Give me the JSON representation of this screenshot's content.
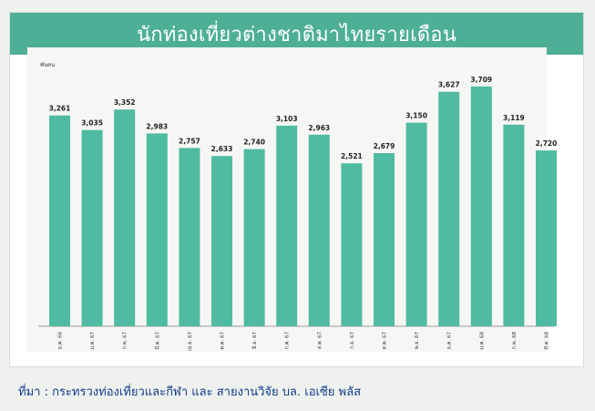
{
  "title": "นักท่องเที่ยวต่างชาติมาไทยรายเดือน",
  "unit_label": "พันคน",
  "source": "ที่มา : กระทรวงท่องเที่ยวและกีฬา และ สายงานวิจัย บล. เอเซีย พลัส",
  "colors": {
    "bar": "#4fbba2",
    "header": "#4daf96",
    "source_text": "#123a8c"
  },
  "chart_data": {
    "type": "bar",
    "title": "นักท่องเที่ยวต่างชาติมาไทยรายเดือน",
    "ylabel": "พันคน",
    "xlabel": "",
    "ylim": [
      0,
      3750
    ],
    "grid": false,
    "categories": [
      "ธ.ค. 66",
      "ม.ค. 67",
      "ก.พ. 67",
      "มี.ค. 67",
      "เม.ย. 67",
      "พ.ค. 67",
      "มิ.ย. 67",
      "ก.ค. 67",
      "ส.ค. 67",
      "ก.ย. 67",
      "ต.ค. 67",
      "พ.ย. 67",
      "ธ.ค. 67",
      "ม.ค. 68",
      "ก.พ. 68",
      "มี.ค. 68"
    ],
    "values": [
      3261,
      3035,
      3352,
      2983,
      2757,
      2633,
      2740,
      3103,
      2963,
      2521,
      2679,
      3150,
      3627,
      3709,
      3119,
      2720
    ],
    "value_labels": [
      "3,261",
      "3,035",
      "3,352",
      "2,983",
      "2,757",
      "2,633",
      "2,740",
      "3,103",
      "2,963",
      "2,521",
      "2,679",
      "3,150",
      "3,627",
      "3,709",
      "3,119",
      "2,720"
    ]
  }
}
